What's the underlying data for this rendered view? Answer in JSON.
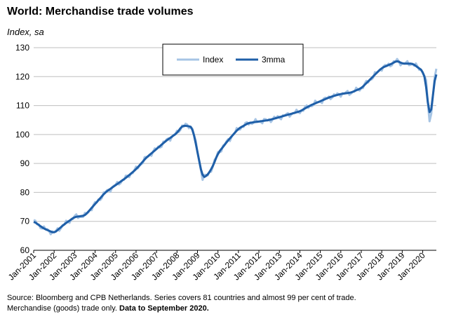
{
  "chart_data": {
    "type": "line",
    "title": "World: Merchandise trade volumes",
    "ylabel": "Index, sa",
    "xlabel": "",
    "ylim": [
      60,
      130
    ],
    "yticks": [
      60,
      70,
      80,
      90,
      100,
      110,
      120,
      130
    ],
    "xticks": [
      "Jan-2001",
      "Jan-2002",
      "Jan-2003",
      "Jan-2004",
      "Jan-2005",
      "Jan-2006",
      "Jan-2007",
      "Jan-2008",
      "Jan-2009",
      "Jan-2010",
      "Jan-2011",
      "Jan-2012",
      "Jan-2013",
      "Jan-2014",
      "Jan-2015",
      "Jan-2016",
      "Jan-2017",
      "Jan-2018",
      "Jan-2019",
      "Jan-2020"
    ],
    "grid": "horizontal",
    "legend_position": "top-center",
    "x_anchors": [
      [
        "Jan-2001",
        70
      ],
      [
        "Jul-2001",
        67.5
      ],
      [
        "Jan-2002",
        66
      ],
      [
        "Jul-2002",
        69
      ],
      [
        "Jan-2003",
        71.5
      ],
      [
        "Jul-2003",
        72
      ],
      [
        "Jan-2004",
        76
      ],
      [
        "Jul-2004",
        80
      ],
      [
        "Jan-2005",
        82.5
      ],
      [
        "Jul-2005",
        85
      ],
      [
        "Jan-2006",
        88
      ],
      [
        "Jul-2006",
        92
      ],
      [
        "Jan-2007",
        95
      ],
      [
        "Jul-2007",
        98
      ],
      [
        "Jan-2008",
        100.5
      ],
      [
        "Apr-2008",
        103
      ],
      [
        "Jul-2008",
        103
      ],
      [
        "Oct-2008",
        102.5
      ],
      [
        "Jan-2009",
        94
      ],
      [
        "Apr-2009",
        85
      ],
      [
        "Jul-2009",
        86
      ],
      [
        "Oct-2009",
        89
      ],
      [
        "Jan-2010",
        93.5
      ],
      [
        "Jul-2010",
        98
      ],
      [
        "Jan-2011",
        102
      ],
      [
        "Jul-2011",
        104
      ],
      [
        "Jan-2012",
        104.5
      ],
      [
        "Jul-2012",
        105
      ],
      [
        "Jan-2013",
        106
      ],
      [
        "Jul-2013",
        107
      ],
      [
        "Jan-2014",
        108
      ],
      [
        "Jul-2014",
        110
      ],
      [
        "Jan-2015",
        111.5
      ],
      [
        "Jul-2015",
        113
      ],
      [
        "Jan-2016",
        114
      ],
      [
        "Jul-2016",
        114.5
      ],
      [
        "Jan-2017",
        116
      ],
      [
        "Jul-2017",
        119.5
      ],
      [
        "Jan-2018",
        123
      ],
      [
        "Jul-2018",
        124.5
      ],
      [
        "Oct-2018",
        125.5
      ],
      [
        "Jan-2019",
        124.5
      ],
      [
        "Jul-2019",
        124.5
      ],
      [
        "Jan-2020",
        122
      ],
      [
        "Mar-2020",
        118
      ],
      [
        "May-2020",
        104.5
      ],
      [
        "Jun-2020",
        107.5
      ],
      [
        "Jul-2020",
        114
      ],
      [
        "Aug-2020",
        119
      ],
      [
        "Sep-2020",
        122.5
      ]
    ],
    "series": [
      {
        "name": "Index",
        "color": "#a6c4e4",
        "width": 3,
        "smoothing": 1,
        "noise": 1.0
      },
      {
        "name": "3mma",
        "color": "#1f5fa8",
        "width": 3,
        "smoothing": 3,
        "noise": 0.0
      }
    ],
    "source_prefix": "Source: Bloomberg and CPB Netherlands. Series covers 81 countries and almost 99 per cent of trade.",
    "source_line2": "Merchandise (goods) trade only.",
    "source_bold": "Data to September 2020."
  }
}
